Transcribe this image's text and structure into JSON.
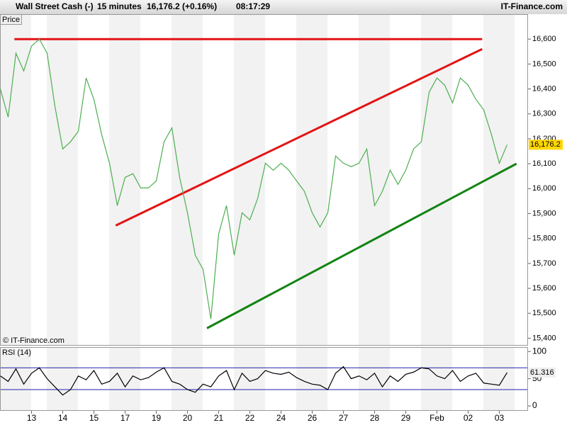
{
  "header": {
    "instrument": "Wall Street Cash (-)",
    "interval": "15 minutes",
    "quote": "16,176.2 (+0.16%)",
    "time": "08:17:29",
    "brand": "IT-Finance.com",
    "panel_label": "Price",
    "copyright": "© IT-Finance.com"
  },
  "chart_data": [
    {
      "type": "line",
      "categories": [
        null,
        null,
        null,
        null,
        "13",
        null,
        null,
        null,
        "14",
        null,
        null,
        null,
        "15",
        null,
        null,
        null,
        "17",
        null,
        null,
        null,
        "19",
        null,
        null,
        null,
        "20",
        null,
        null,
        null,
        "21",
        null,
        null,
        null,
        "22",
        null,
        null,
        null,
        "24",
        null,
        null,
        null,
        "26",
        null,
        null,
        null,
        "27",
        null,
        null,
        null,
        "28",
        null,
        null,
        null,
        "29",
        null,
        null,
        null,
        "Feb",
        null,
        null,
        null,
        "02",
        null,
        null,
        null,
        "03",
        null
      ],
      "series": [
        {
          "color": "#4caf50",
          "values": [
            16400,
            16287,
            16543,
            16472,
            16572,
            16600,
            16543,
            16330,
            16159,
            16188,
            16230,
            16444,
            16358,
            16216,
            16102,
            15932,
            16045,
            16060,
            16003,
            16003,
            16031,
            16188,
            16244,
            16045,
            15903,
            15733,
            15676,
            15477,
            15818,
            15932,
            15733,
            15903,
            15875,
            15960,
            16102,
            16074,
            16102,
            16074,
            16031,
            15989,
            15903,
            15846,
            15903,
            16131,
            16102,
            16088,
            16102,
            16159,
            15932,
            15989,
            16074,
            16017,
            16074,
            16159,
            16188,
            16387,
            16444,
            16415,
            16344,
            16444,
            16415,
            16358,
            16316,
            16216,
            16102,
            16176.2
          ]
        }
      ],
      "trendlines": [
        {
          "color": "#e31414",
          "x": [
            1.8,
            61.8
          ],
          "values": [
            16600,
            16600
          ]
        },
        {
          "color": "#e31414",
          "x": [
            14.8,
            61.8
          ],
          "values": [
            15852,
            16560
          ]
        },
        {
          "color": "#138413",
          "x": [
            26.5,
            66.2
          ],
          "values": [
            15440,
            16100
          ]
        }
      ],
      "last_price": {
        "value": 16176.2,
        "label": "16,176.2"
      },
      "ylim": [
        15370,
        16700
      ],
      "yticks": [
        {
          "value": 15400,
          "label": "15,400"
        },
        {
          "value": 15500,
          "label": "15,500"
        },
        {
          "value": 15600,
          "label": "15,600"
        },
        {
          "value": 15700,
          "label": "15,700"
        },
        {
          "value": 15800,
          "label": "15,800"
        },
        {
          "value": 15900,
          "label": "15,900"
        },
        {
          "value": 16000,
          "label": "16,000"
        },
        {
          "value": 16100,
          "label": "16,100"
        },
        {
          "value": 16200,
          "label": "16,200"
        },
        {
          "value": 16300,
          "label": "16,300"
        },
        {
          "value": 16400,
          "label": "16,400"
        },
        {
          "value": 16500,
          "label": "16,500"
        },
        {
          "value": 16600,
          "label": "16,600"
        }
      ]
    },
    {
      "type": "line",
      "title": "RSI (14)",
      "series": [
        {
          "color": "#000000",
          "values": [
            55,
            45,
            68,
            40,
            60,
            70,
            50,
            35,
            20,
            30,
            55,
            48,
            65,
            40,
            45,
            60,
            35,
            55,
            48,
            52,
            62,
            70,
            45,
            40,
            30,
            25,
            40,
            35,
            55,
            65,
            30,
            60,
            45,
            50,
            65,
            60,
            58,
            62,
            52,
            45,
            40,
            38,
            30,
            60,
            72,
            50,
            55,
            48,
            60,
            35,
            55,
            45,
            58,
            62,
            70,
            68,
            55,
            50,
            65,
            45,
            55,
            60,
            42,
            40,
            38,
            61.316
          ]
        }
      ],
      "levels": [
        70,
        30
      ],
      "level_color": "#2222aa",
      "last_value": 61.316,
      "ylim": [
        -9,
        108
      ],
      "yticks": [
        0,
        50,
        100
      ]
    }
  ]
}
